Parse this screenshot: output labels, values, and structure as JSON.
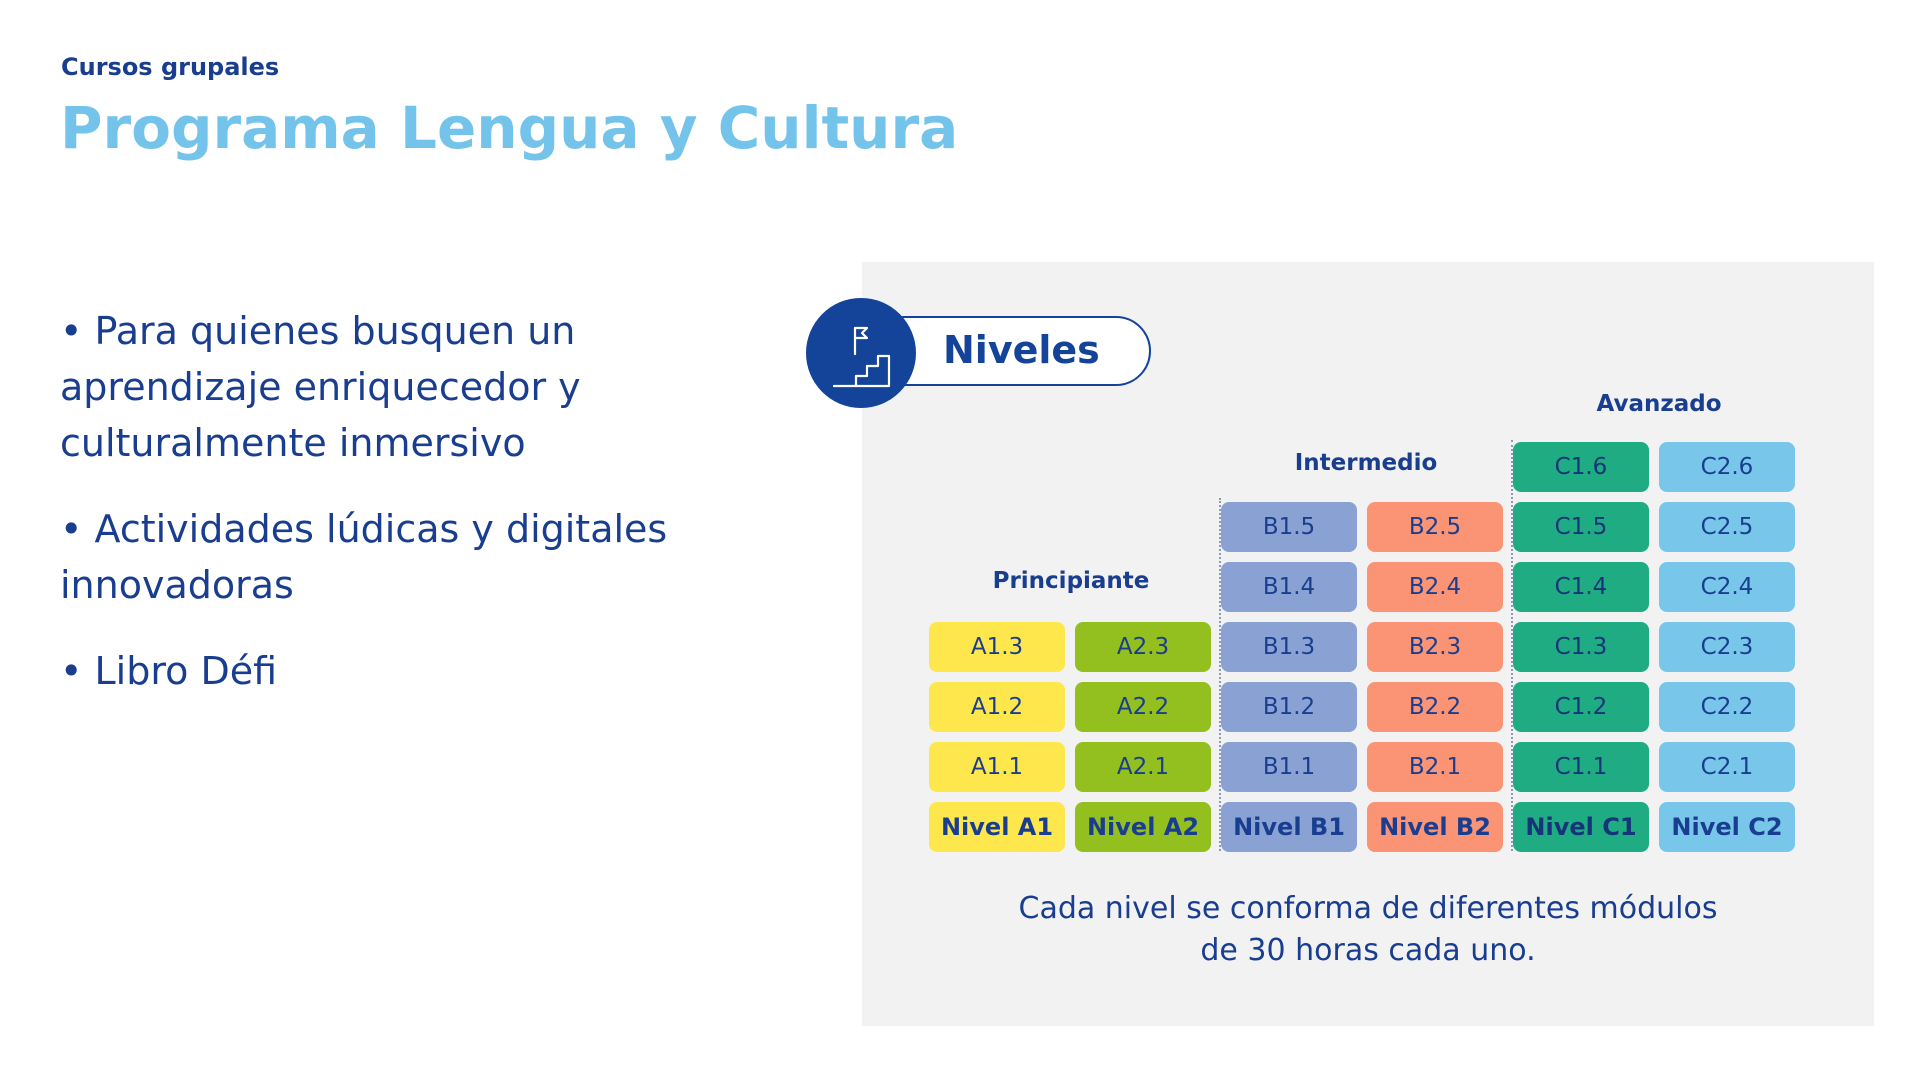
{
  "header": {
    "subtitle": "Cursos grupales",
    "title": "Programa Lengua y Cultura"
  },
  "bullets": [
    "Para quienes busquen un aprendizaje enriquecedor y culturalmente inmersivo",
    "Actividades lúdicas y digitales innovadoras",
    "Libro Défi"
  ],
  "diagram": {
    "badge_label": "Niveles",
    "badge_icon": "stairs-flag-icon",
    "groups": [
      {
        "label": "Principiante"
      },
      {
        "label": "Intermedio"
      },
      {
        "label": "Avanzado"
      }
    ],
    "columns": [
      {
        "base": "Nivel A1",
        "color": "#fde74c",
        "text_color": "#1a3e8f",
        "modules": [
          "A1.1",
          "A1.2",
          "A1.3"
        ]
      },
      {
        "base": "Nivel A2",
        "color": "#93c01f",
        "text_color": "#1a3e8f",
        "modules": [
          "A2.1",
          "A2.2",
          "A2.3"
        ]
      },
      {
        "base": "Nivel B1",
        "color": "#8aa1d4",
        "text_color": "#1a3e8f",
        "modules": [
          "B1.1",
          "B1.2",
          "B1.3",
          "B1.4",
          "B1.5"
        ]
      },
      {
        "base": "Nivel B2",
        "color": "#fa9475",
        "text_color": "#1a3e8f",
        "modules": [
          "B2.1",
          "B2.2",
          "B2.3",
          "B2.4",
          "B2.5"
        ]
      },
      {
        "base": "Nivel C1",
        "color": "#1fac82",
        "text_color": "#16347a",
        "modules": [
          "C1.1",
          "C1.2",
          "C1.3",
          "C1.4",
          "C1.5",
          "C1.6"
        ]
      },
      {
        "base": "Nivel C2",
        "color": "#78c6ea",
        "text_color": "#1a3e8f",
        "modules": [
          "C2.1",
          "C2.2",
          "C2.3",
          "C2.4",
          "C2.5",
          "C2.6"
        ]
      }
    ],
    "caption_line1": "Cada nivel se conforma de diferentes módulos",
    "caption_line2": "de 30 horas cada uno."
  }
}
